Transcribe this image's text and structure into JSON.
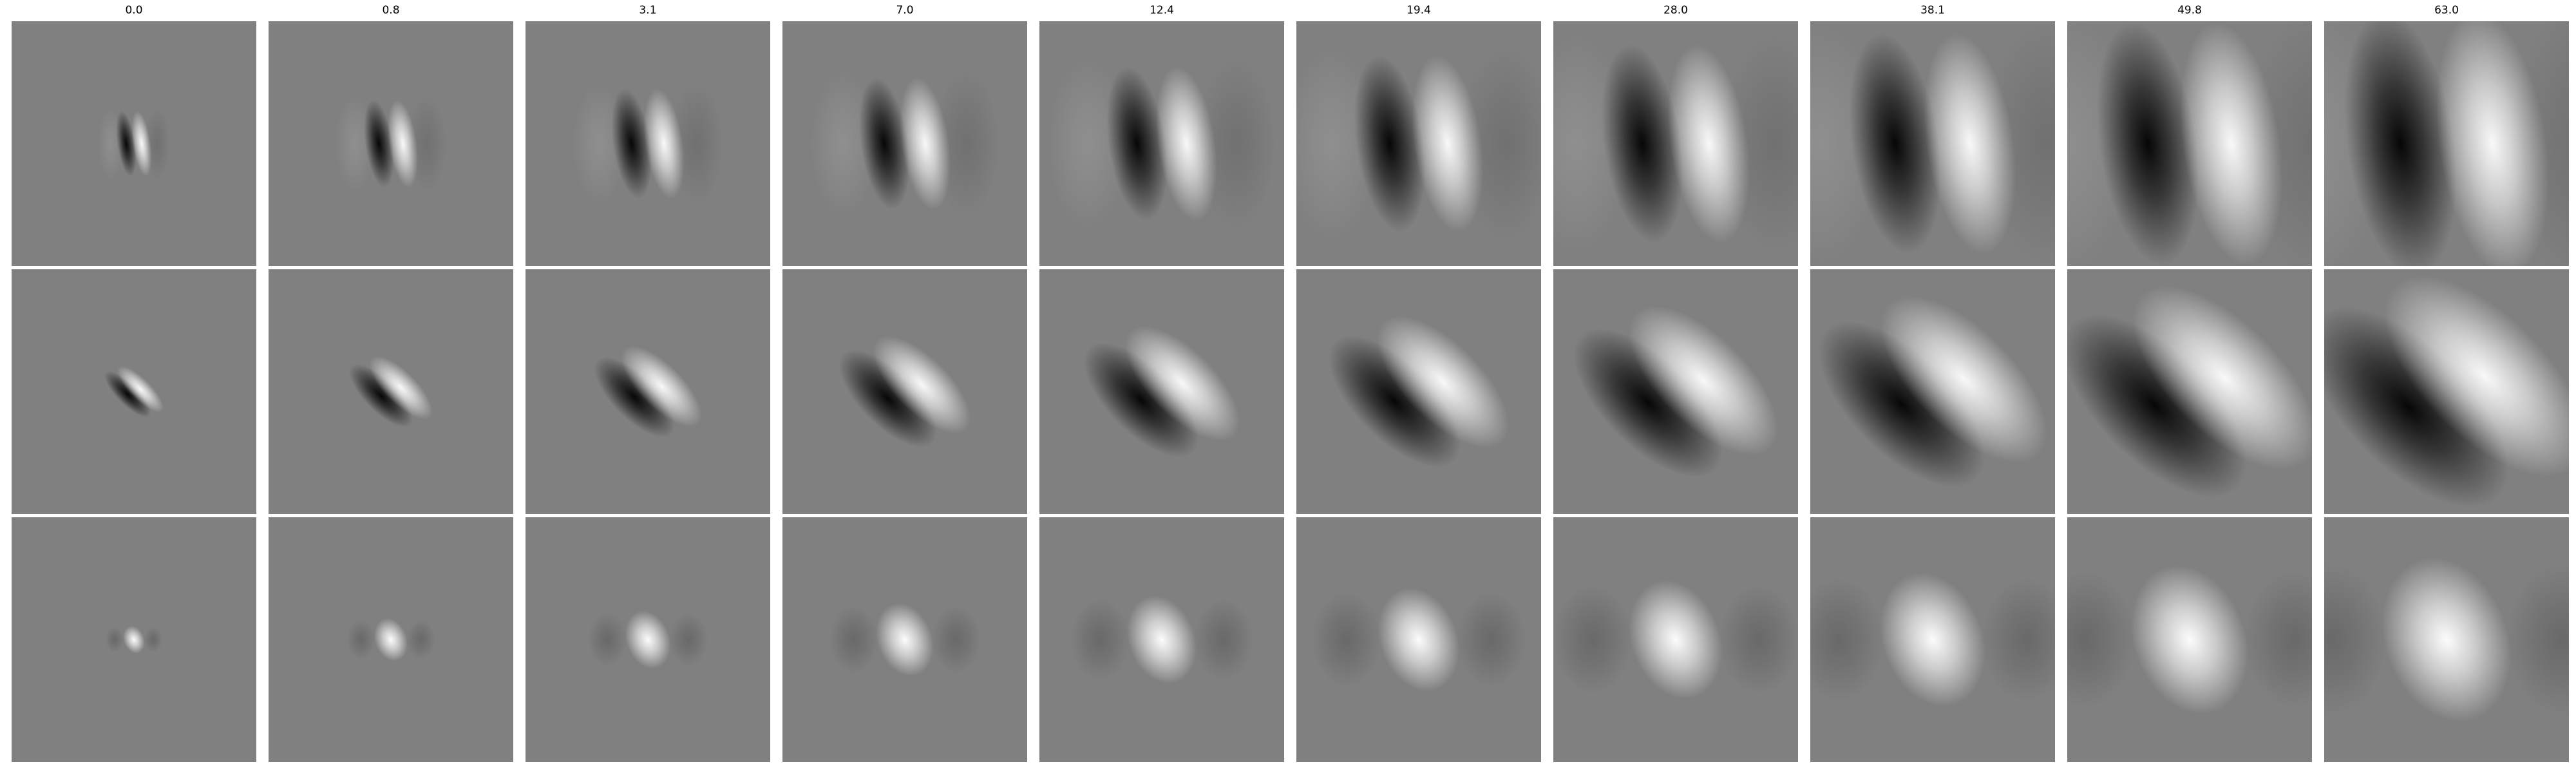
{
  "column_titles": [
    "0.0",
    "0.8",
    "3.1",
    "7.0",
    "12.4",
    "19.4",
    "28.0",
    "38.1",
    "49.8",
    "63.0"
  ],
  "rows": 3,
  "colormap": "grayscale"
}
